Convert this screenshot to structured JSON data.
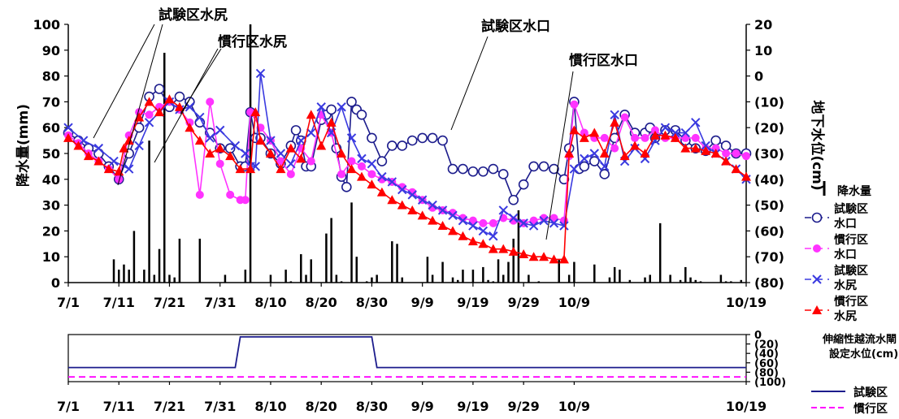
{
  "chart_data": [
    {
      "type": "line",
      "title": "",
      "x_ticks": [
        "7/1",
        "7/11",
        "7/21",
        "7/31",
        "8/10",
        "8/20",
        "8/30",
        "9/9",
        "9/19",
        "9/29",
        "10/9",
        "10/19"
      ],
      "y_left_label": "降水量(mm)",
      "y_left_ticks": [
        "0",
        "10",
        "20",
        "30",
        "40",
        "50",
        "60",
        "70",
        "80",
        "90",
        "100"
      ],
      "y_left_range": [
        0,
        100
      ],
      "y_right_label": "地下水位(cm)",
      "y_right_ticks": [
        "20",
        "10",
        "0",
        "(10)",
        "(20)",
        "(30)",
        "(40)",
        "(50)",
        "(60)",
        "(70)",
        "(80)"
      ],
      "y_right_range": [
        20,
        -80
      ],
      "annotations": [
        "試験区水尻",
        "慣行区水尻",
        "試験区水口",
        "慣行区水口"
      ],
      "legend": [
        {
          "label": "降水量",
          "key": "rain",
          "color": "#000000"
        },
        {
          "label": "試験区\n水口",
          "key": "s_mouth",
          "color": "#1c1c8c"
        },
        {
          "label": "慣行区\n水口",
          "key": "c_mouth",
          "color": "#ff33ff"
        },
        {
          "label": "試験区\n水尻",
          "key": "s_tail",
          "color": "#3a3ae0"
        },
        {
          "label": "慣行区\n水尻",
          "key": "c_tail",
          "color": "#ff0000"
        }
      ],
      "rain": {
        "name": "降水量",
        "days": [
          9,
          10,
          11,
          12,
          13,
          14,
          15,
          16,
          17,
          18,
          19,
          20,
          21,
          22,
          26,
          31,
          35,
          36,
          40,
          43,
          44,
          46,
          47,
          48,
          51,
          52,
          53,
          54,
          56,
          57,
          59,
          60,
          61,
          64,
          65,
          66,
          71,
          72,
          74,
          76,
          77,
          78,
          80,
          82,
          83,
          84,
          85,
          86,
          87,
          88,
          89,
          91,
          93,
          97,
          99,
          100,
          104,
          107,
          108,
          109,
          111,
          114,
          115,
          117,
          119,
          121,
          122,
          123,
          124,
          125,
          129,
          130,
          131,
          133
        ],
        "values": [
          9,
          5,
          7,
          5,
          20,
          0.5,
          5,
          55,
          3,
          13,
          89,
          3,
          2,
          17,
          17,
          3,
          5,
          100,
          3,
          5,
          0.5,
          11,
          3,
          9,
          19,
          25,
          3,
          0.5,
          31,
          10,
          0.5,
          2,
          3,
          16,
          15,
          2,
          10,
          3,
          8,
          2,
          1,
          5,
          5,
          6,
          1,
          0.5,
          9,
          3,
          8,
          17,
          28,
          3,
          0.5,
          9,
          3,
          8,
          7,
          2,
          6,
          5,
          1,
          2,
          3,
          23,
          3,
          1,
          6,
          2,
          1,
          0.5,
          3,
          0.5,
          0.5,
          1
        ]
      },
      "series": [
        {
          "name": "試験区水口",
          "key": "s_mouth",
          "x": [
            0,
            2,
            4,
            6,
            8,
            10,
            12,
            14,
            16,
            18,
            20,
            22,
            24,
            26,
            28,
            30,
            32,
            34,
            35,
            36,
            37,
            38,
            40,
            42,
            44,
            45,
            46,
            47,
            48,
            50,
            51,
            52,
            53,
            54,
            55,
            56,
            57,
            58,
            60,
            62,
            64,
            66,
            68,
            70,
            72,
            74,
            76,
            78,
            80,
            82,
            84,
            86,
            88,
            90,
            92,
            94,
            96,
            98,
            99,
            100,
            101,
            102,
            104,
            106,
            108,
            110,
            112,
            114,
            115,
            116,
            118,
            120,
            122,
            124,
            126,
            128,
            130,
            132,
            134
          ],
          "y": [
            -22,
            -25,
            -28,
            -30,
            -35,
            -40,
            -30,
            -20,
            -8,
            -5,
            -12,
            -8,
            -10,
            -18,
            -22,
            -28,
            -28,
            -35,
            -35,
            -14,
            -24,
            -24,
            -30,
            -34,
            -27,
            -21,
            -25,
            -35,
            -35,
            -17,
            -15,
            -13,
            -28,
            -39,
            -43,
            -10,
            -13,
            -15,
            -24,
            -33,
            -27,
            -27,
            -25,
            -24,
            -24,
            -25,
            -36,
            -36,
            -37,
            -37,
            -36,
            -38,
            -48,
            -42,
            -35,
            -35,
            -36,
            -40,
            -28,
            -10,
            -36,
            -35,
            -33,
            -38,
            -24,
            -15,
            -22,
            -22,
            -20,
            -24,
            -21,
            -21,
            -25,
            -28,
            -29,
            -25,
            -27,
            -30,
            -30
          ]
        },
        {
          "name": "慣行区水口",
          "key": "c_mouth",
          "x": [
            0,
            2,
            4,
            6,
            8,
            10,
            12,
            14,
            16,
            18,
            20,
            22,
            24,
            26,
            28,
            30,
            32,
            34,
            35,
            36,
            38,
            40,
            42,
            44,
            46,
            48,
            50,
            52,
            54,
            56,
            58,
            60,
            62,
            64,
            66,
            68,
            70,
            72,
            74,
            76,
            78,
            80,
            82,
            84,
            86,
            88,
            90,
            92,
            94,
            96,
            98,
            99,
            100,
            102,
            104,
            106,
            108,
            110,
            112,
            114,
            116,
            118,
            120,
            122,
            124,
            126,
            128,
            130,
            132,
            134
          ],
          "y": [
            -23,
            -26,
            -30,
            -33,
            -36,
            -40,
            -23,
            -14,
            -15,
            -12,
            -10,
            -13,
            -18,
            -46,
            -10,
            -34,
            -46,
            -48,
            -48,
            -14,
            -20,
            -25,
            -33,
            -38,
            -28,
            -33,
            -15,
            -22,
            -38,
            -33,
            -35,
            -38,
            -40,
            -41,
            -43,
            -45,
            -48,
            -51,
            -52,
            -53,
            -55,
            -56,
            -57,
            -57,
            -55,
            -56,
            -57,
            -56,
            -55,
            -55,
            -56,
            -31,
            -11,
            -22,
            -24,
            -24,
            -28,
            -16,
            -24,
            -24,
            -21,
            -24,
            -24,
            -24,
            -24,
            -28,
            -28,
            -30,
            -30,
            -31
          ]
        },
        {
          "name": "試験区水尻",
          "key": "s_tail",
          "x": [
            0,
            3,
            6,
            9,
            12,
            14,
            16,
            18,
            20,
            22,
            24,
            26,
            28,
            30,
            33,
            35,
            36,
            37,
            38,
            40,
            42,
            44,
            46,
            48,
            50,
            52,
            54,
            56,
            58,
            60,
            62,
            64,
            66,
            68,
            70,
            72,
            74,
            76,
            78,
            80,
            82,
            84,
            86,
            88,
            90,
            92,
            94,
            96,
            98,
            100,
            102,
            104,
            106,
            108,
            110,
            112,
            114,
            116,
            118,
            120,
            122,
            124,
            126,
            128,
            130,
            132,
            134
          ],
          "y": [
            -20,
            -25,
            -28,
            -33,
            -36,
            -27,
            -18,
            -14,
            -10,
            -13,
            -12,
            -16,
            -24,
            -21,
            -27,
            -30,
            -35,
            -35,
            1,
            -25,
            -30,
            -34,
            -25,
            -22,
            -12,
            -22,
            -12,
            -24,
            -32,
            -34,
            -39,
            -41,
            -44,
            -46,
            -48,
            -50,
            -52,
            -54,
            -56,
            -58,
            -60,
            -62,
            -52,
            -55,
            -57,
            -58,
            -56,
            -57,
            -58,
            -36,
            -32,
            -30,
            -35,
            -15,
            -33,
            -28,
            -32,
            -25,
            -20,
            -22,
            -22,
            -18,
            -27,
            -30,
            -33,
            -36,
            -40
          ]
        },
        {
          "name": "慣行区水尻",
          "key": "c_tail",
          "x": [
            0,
            2,
            4,
            6,
            8,
            10,
            11,
            12,
            14,
            16,
            18,
            20,
            22,
            24,
            26,
            28,
            30,
            32,
            34,
            36,
            37,
            38,
            40,
            42,
            44,
            46,
            48,
            50,
            52,
            54,
            56,
            58,
            60,
            62,
            64,
            66,
            68,
            70,
            72,
            74,
            76,
            78,
            80,
            82,
            84,
            86,
            88,
            90,
            92,
            94,
            96,
            98,
            99,
            100,
            102,
            104,
            106,
            108,
            110,
            112,
            114,
            116,
            118,
            120,
            122,
            124,
            126,
            128,
            130,
            132,
            134
          ],
          "y": [
            -24,
            -27,
            -31,
            -33,
            -36,
            -37,
            -28,
            -25,
            -16,
            -10,
            -14,
            -9,
            -12,
            -20,
            -25,
            -30,
            -28,
            -31,
            -36,
            -36,
            -14,
            -25,
            -30,
            -36,
            -28,
            -32,
            -15,
            -27,
            -18,
            -30,
            -36,
            -39,
            -42,
            -45,
            -48,
            -50,
            -52,
            -54,
            -56,
            -58,
            -60,
            -62,
            -64,
            -65,
            -67,
            -67,
            -68,
            -69,
            -70,
            -70,
            -71,
            -71,
            -30,
            -21,
            -24,
            -22,
            -30,
            -18,
            -31,
            -27,
            -30,
            -23,
            -23,
            -24,
            -28,
            -28,
            -29,
            -30,
            -33,
            -36,
            -39
          ]
        }
      ]
    },
    {
      "type": "line",
      "title": "伸縮性越流水閘\n設定水位(cm)",
      "x_ticks": [
        "7/1",
        "7/11",
        "7/21",
        "7/31",
        "8/10",
        "8/20",
        "8/30",
        "9/9",
        "9/19",
        "9/29",
        "10/9",
        "10/19"
      ],
      "y_ticks": [
        "0",
        "(20)",
        "(40)",
        "(60)",
        "(80)",
        "(100)"
      ],
      "y_range": [
        0,
        -100
      ],
      "legend": [
        {
          "label": "試験区",
          "key": "s_set",
          "color": "#1c1c8c"
        },
        {
          "label": "慣行区",
          "key": "c_set",
          "color": "#ff00ff"
        }
      ],
      "series": [
        {
          "name": "試験区",
          "key": "s_set",
          "x": [
            0,
            33,
            34,
            60,
            61,
            134
          ],
          "y": [
            -70,
            -70,
            -5,
            -5,
            -70,
            -70
          ]
        },
        {
          "name": "慣行区",
          "key": "c_set",
          "x": [
            0,
            134
          ],
          "y": [
            -90,
            -90
          ]
        }
      ]
    }
  ]
}
